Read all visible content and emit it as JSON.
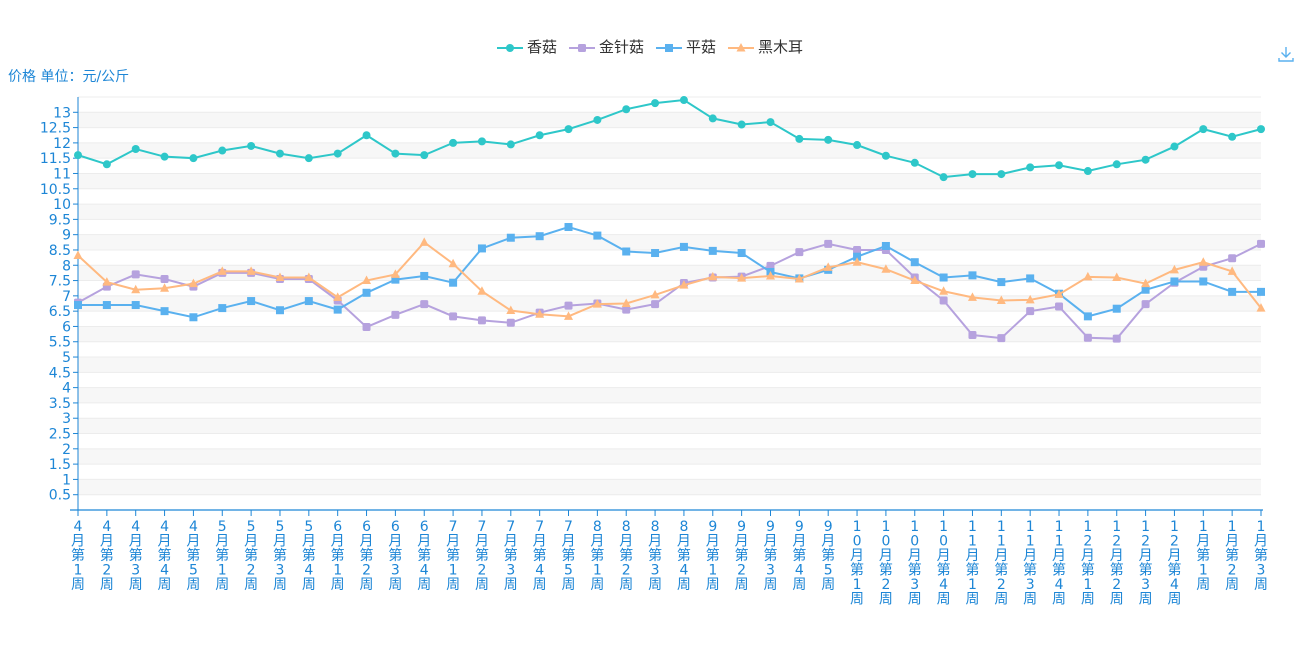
{
  "unit_label": "价格 单位：元/公斤",
  "icons": {
    "download": "download-icon"
  },
  "chart_data": {
    "type": "line",
    "ylabel": "价格 单位：元/公斤",
    "ylim": [
      0,
      13.5
    ],
    "yticks": [
      "0.5",
      "1",
      "1.5",
      "2",
      "2.5",
      "3",
      "3.5",
      "4",
      "4.5",
      "5",
      "5.5",
      "6",
      "6.5",
      "7",
      "7.5",
      "8",
      "8.5",
      "9",
      "9.5",
      "10",
      "10.5",
      "11",
      "11.5",
      "12",
      "12.5",
      "13"
    ],
    "grid": true,
    "legend_position": "top-center",
    "categories": [
      "4月第1周",
      "4月第2周",
      "4月第3周",
      "4月第4周",
      "4月第5周",
      "5月第1周",
      "5月第2周",
      "5月第3周",
      "5月第4周",
      "6月第1周",
      "6月第2周",
      "6月第3周",
      "6月第4周",
      "7月第1周",
      "7月第2周",
      "7月第3周",
      "7月第4周",
      "7月第5周",
      "8月第1周",
      "8月第2周",
      "8月第3周",
      "8月第4周",
      "9月第1周",
      "9月第2周",
      "9月第3周",
      "9月第4周",
      "9月第5周",
      "10月第1周",
      "10月第2周",
      "10月第3周",
      "10月第4周",
      "11月第1周",
      "11月第2周",
      "11月第3周",
      "11月第4周",
      "12月第1周",
      "12月第2周",
      "12月第3周",
      "12月第4周",
      "1月第1周",
      "1月第2周",
      "1月第3周"
    ],
    "series": [
      {
        "name": "香菇",
        "color": "#2ec7c9",
        "symbol": "circle",
        "values": [
          11.6,
          11.3,
          11.8,
          11.55,
          11.5,
          11.75,
          11.9,
          11.65,
          11.5,
          11.65,
          12.25,
          11.65,
          11.6,
          12.0,
          12.05,
          11.95,
          12.25,
          12.45,
          12.75,
          13.1,
          13.3,
          13.4,
          12.8,
          12.6,
          12.68,
          12.13,
          12.1,
          11.93,
          11.58,
          11.35,
          10.88,
          10.98,
          10.98,
          11.2,
          11.27,
          11.08,
          11.3,
          11.45,
          11.88,
          12.45,
          12.2,
          12.45
        ]
      },
      {
        "name": "金针菇",
        "color": "#b6a2de",
        "symbol": "square",
        "values": [
          6.78,
          7.3,
          7.7,
          7.55,
          7.3,
          7.75,
          7.75,
          7.55,
          7.55,
          6.85,
          5.98,
          6.38,
          6.73,
          6.33,
          6.2,
          6.12,
          6.45,
          6.68,
          6.75,
          6.55,
          6.73,
          7.42,
          7.6,
          7.63,
          7.98,
          8.43,
          8.7,
          8.5,
          8.5,
          7.6,
          6.85,
          5.72,
          5.62,
          6.5,
          6.65,
          5.63,
          5.6,
          6.73,
          7.43,
          7.95,
          8.23,
          8.7
        ]
      },
      {
        "name": "平菇",
        "color": "#5ab1ef",
        "symbol": "rect",
        "values": [
          6.7,
          6.7,
          6.7,
          6.5,
          6.3,
          6.6,
          6.83,
          6.53,
          6.83,
          6.55,
          7.1,
          7.53,
          7.65,
          7.43,
          8.55,
          8.9,
          8.95,
          9.25,
          8.97,
          8.45,
          8.4,
          8.6,
          8.47,
          8.4,
          7.78,
          7.57,
          7.85,
          8.28,
          8.63,
          8.1,
          7.6,
          7.67,
          7.45,
          7.57,
          7.07,
          6.33,
          6.58,
          7.2,
          7.47,
          7.47,
          7.13,
          7.13
        ]
      },
      {
        "name": "黑木耳",
        "color": "#ffb980",
        "symbol": "triangle",
        "values": [
          8.32,
          7.45,
          7.2,
          7.25,
          7.4,
          7.8,
          7.8,
          7.6,
          7.6,
          6.95,
          7.5,
          7.7,
          8.75,
          8.05,
          7.15,
          6.52,
          6.4,
          6.33,
          6.73,
          6.75,
          7.03,
          7.35,
          7.62,
          7.58,
          7.65,
          7.55,
          7.93,
          8.1,
          7.87,
          7.5,
          7.15,
          6.95,
          6.85,
          6.87,
          7.05,
          7.62,
          7.6,
          7.4,
          7.85,
          8.1,
          7.8,
          6.6
        ]
      }
    ]
  }
}
